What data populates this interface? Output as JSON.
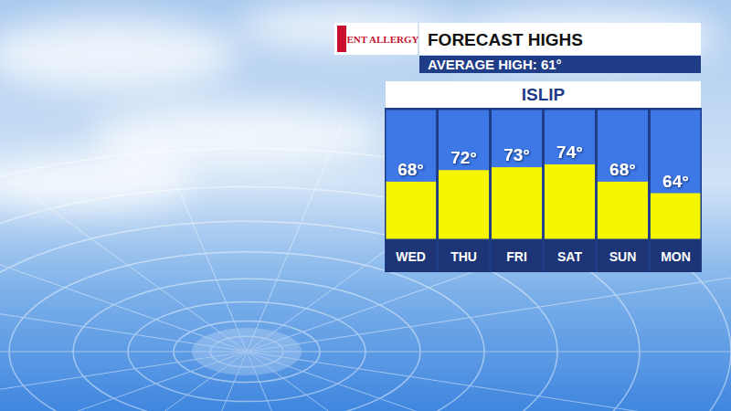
{
  "chart_data": {
    "type": "bar",
    "logo": "ENT ALLERGY",
    "title": "FORECAST HIGHS",
    "subtitle": "AVERAGE HIGH: 61°",
    "panel_title": "ISLIP",
    "categories": [
      "WED",
      "THU",
      "FRI",
      "SAT",
      "SUN",
      "MON"
    ],
    "values": [
      68,
      72,
      73,
      74,
      68,
      64
    ],
    "value_labels": [
      "68°",
      "72°",
      "73°",
      "74°",
      "68°",
      "64°"
    ],
    "color": "#f6f600",
    "ylim": [
      48,
      93
    ],
    "data_labels": true,
    "tick_labels": "x",
    "grid": false
  }
}
